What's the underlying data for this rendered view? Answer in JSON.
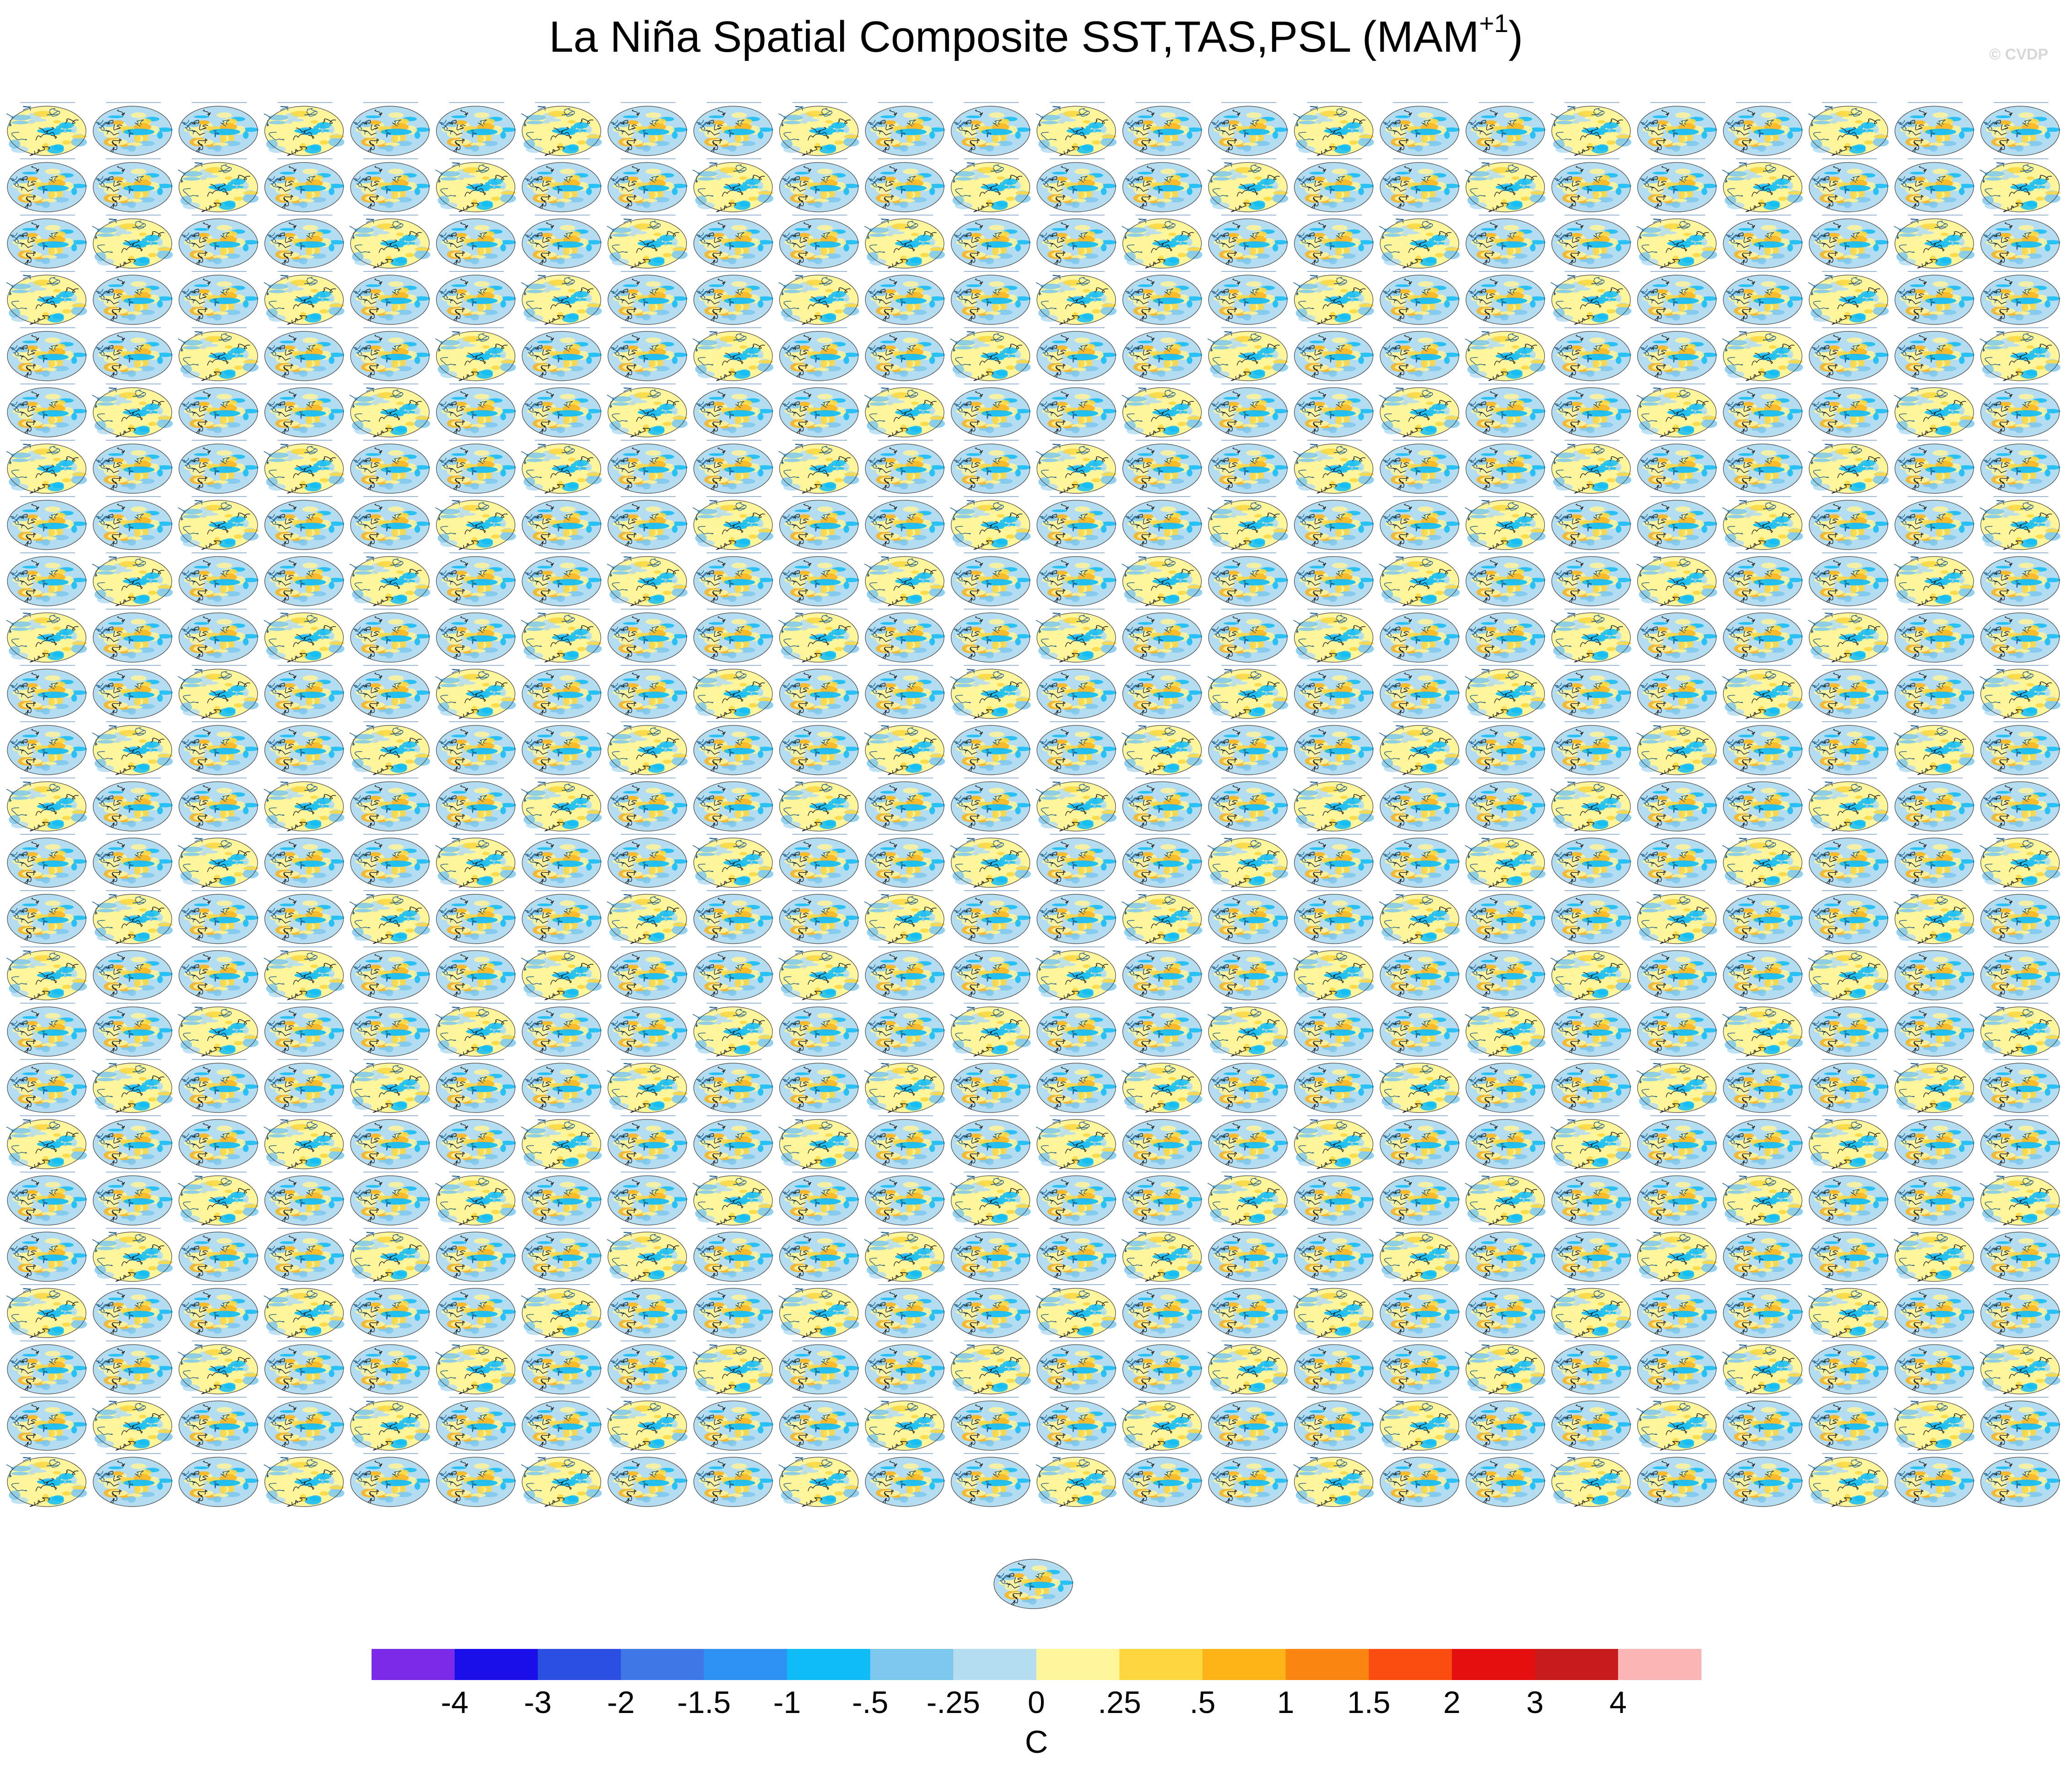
{
  "title": {
    "main": "La Niña Spatial Composite SST,TAS,PSL (MAM",
    "superscript": "+1",
    "close": ")"
  },
  "watermark": "© CVDP",
  "chart_data": {
    "type": "heatmap",
    "panel_grid": {
      "rows": 25,
      "columns": 24,
      "extra_panels": 1
    },
    "map_projection": "global ellipse (Robinson-like)",
    "fields": [
      "SST",
      "TAS",
      "PSL"
    ],
    "colorbar": {
      "unit_label": "C",
      "tick_labels": [
        "-4",
        "-3",
        "-2",
        "-1.5",
        "-1",
        "-.5",
        "-.25",
        "0",
        ".25",
        ".5",
        "1",
        "1.5",
        "2",
        "3",
        "4"
      ],
      "colors": [
        "#7b2be8",
        "#1a0fe8",
        "#2b4fe0",
        "#3e78e6",
        "#2e92f4",
        "#10bcf6",
        "#7cc8ee",
        "#b4ddf2",
        "#fff59a",
        "#fdd73e",
        "#fcb316",
        "#fb8511",
        "#fb4d10",
        "#e60f0f",
        "#c81b1b",
        "#fab5b5"
      ]
    }
  }
}
